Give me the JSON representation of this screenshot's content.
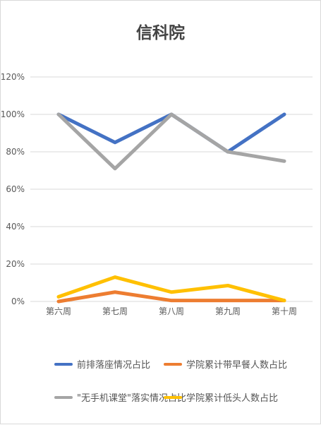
{
  "chart_data": {
    "type": "line",
    "title": "信科院",
    "categories": [
      "第六周",
      "第七周",
      "第八周",
      "第九周",
      "第十周"
    ],
    "ylim": [
      0,
      120
    ],
    "yticks": [
      0,
      20,
      40,
      60,
      80,
      100,
      120
    ],
    "ytick_labels": [
      "0%",
      "20%",
      "40%",
      "60%",
      "80%",
      "100%",
      "120%"
    ],
    "grid": true,
    "legend_position": "bottom",
    "series": [
      {
        "name": "前排落座情况占比",
        "color": "#4472C4",
        "values": [
          100,
          85,
          100,
          80,
          100
        ]
      },
      {
        "name": "学院累计带早餐人数占比",
        "color": "#ED7D31",
        "values": [
          0,
          5,
          0.5,
          0.5,
          0.5
        ]
      },
      {
        "name": "\"无手机课堂\"落实情况占比",
        "color": "#A5A5A5",
        "values": [
          100,
          71,
          100,
          80,
          75
        ]
      },
      {
        "name": "学院累计低头人数占比",
        "color": "#FFC000",
        "values": [
          2.5,
          13,
          5,
          8.5,
          0.5
        ]
      }
    ]
  }
}
